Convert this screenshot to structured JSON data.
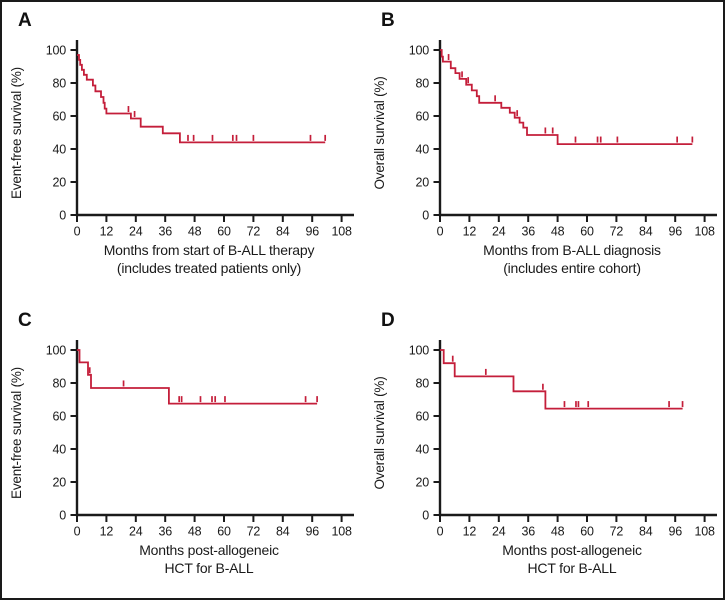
{
  "figure": {
    "background": "#ffffff",
    "border_color": "#1a1a1a",
    "curve_color": "#c41e3a",
    "axis_color": "#1a1a1a"
  },
  "chart_data": [
    {
      "type": "line",
      "subtype": "kaplan-meier-step",
      "panel_label": "A",
      "ylabel": "Event-free survival (%)",
      "xlabel_lines": [
        "Months from start of B-ALL therapy",
        "(includes treated patients only)"
      ],
      "xticks": [
        0,
        12,
        24,
        36,
        48,
        60,
        72,
        84,
        96,
        108
      ],
      "yticks": [
        0,
        20,
        40,
        60,
        80,
        100
      ],
      "xlim": [
        0,
        113
      ],
      "ylim": [
        0,
        100
      ],
      "line_color": "#c41e3a",
      "steps": [
        [
          0,
          97
        ],
        [
          0.8,
          94
        ],
        [
          1.3,
          91
        ],
        [
          2,
          88
        ],
        [
          2.8,
          85
        ],
        [
          4,
          82
        ],
        [
          6.5,
          78.5
        ],
        [
          7.5,
          75
        ],
        [
          9.8,
          71.5
        ],
        [
          10.8,
          68
        ],
        [
          11.3,
          64.5
        ],
        [
          12,
          61.5
        ],
        [
          22,
          58.5
        ],
        [
          26,
          53.5
        ],
        [
          35,
          49.5
        ],
        [
          42,
          44
        ]
      ],
      "x_end": 101.3,
      "censors": [
        [
          21,
          61.5
        ],
        [
          23.5,
          58.5
        ],
        [
          45.3,
          44
        ],
        [
          47.6,
          44
        ],
        [
          55.3,
          44
        ],
        [
          63.6,
          44
        ],
        [
          65.1,
          44
        ],
        [
          72,
          44
        ],
        [
          95.3,
          44
        ],
        [
          101.3,
          44
        ]
      ]
    },
    {
      "type": "line",
      "subtype": "kaplan-meier-step",
      "panel_label": "B",
      "ylabel": "Overall survival (%)",
      "xlabel_lines": [
        "Months from B-ALL diagnosis",
        "(includes entire cohort)"
      ],
      "xticks": [
        0,
        12,
        24,
        36,
        48,
        60,
        72,
        84,
        96,
        108
      ],
      "yticks": [
        0,
        20,
        40,
        60,
        80,
        100
      ],
      "xlim": [
        0,
        113
      ],
      "ylim": [
        0,
        100
      ],
      "line_color": "#c41e3a",
      "steps": [
        [
          0,
          100
        ],
        [
          0.7,
          96
        ],
        [
          1.2,
          93
        ],
        [
          4.4,
          89
        ],
        [
          6.3,
          86
        ],
        [
          8,
          82.5
        ],
        [
          10.7,
          79
        ],
        [
          13,
          75.5
        ],
        [
          15,
          72
        ],
        [
          16,
          68
        ],
        [
          25,
          65
        ],
        [
          28.5,
          62
        ],
        [
          30.5,
          59
        ],
        [
          32.5,
          56
        ],
        [
          34,
          53
        ],
        [
          35.5,
          48.5
        ],
        [
          48,
          43
        ]
      ],
      "x_end": 103,
      "censors": [
        [
          3.5,
          93
        ],
        [
          9,
          82.5
        ],
        [
          11.5,
          79
        ],
        [
          22.5,
          68
        ],
        [
          31.5,
          59
        ],
        [
          43,
          48.5
        ],
        [
          46,
          48.5
        ],
        [
          55.3,
          43
        ],
        [
          64.3,
          43
        ],
        [
          65.6,
          43
        ],
        [
          72.4,
          43
        ],
        [
          96.8,
          43
        ],
        [
          103,
          43
        ]
      ]
    },
    {
      "type": "line",
      "subtype": "kaplan-meier-step",
      "panel_label": "C",
      "ylabel": "Event-free survival (%)",
      "xlabel_lines": [
        "Months post-allogeneic",
        "HCT for B-ALL"
      ],
      "xticks": [
        0,
        12,
        24,
        36,
        48,
        60,
        72,
        84,
        96,
        108
      ],
      "yticks": [
        0,
        20,
        40,
        60,
        80,
        100
      ],
      "xlim": [
        0,
        113
      ],
      "ylim": [
        0,
        100
      ],
      "line_color": "#c41e3a",
      "steps": [
        [
          0,
          100
        ],
        [
          1,
          92.5
        ],
        [
          4.5,
          85
        ],
        [
          5.7,
          77
        ],
        [
          37.5,
          67.5
        ]
      ],
      "x_end": 98,
      "censors": [
        [
          5.2,
          85
        ],
        [
          19,
          77
        ],
        [
          41.7,
          67.5
        ],
        [
          42.7,
          67.5
        ],
        [
          50.4,
          67.5
        ],
        [
          55.1,
          67.5
        ],
        [
          56.4,
          67.5
        ],
        [
          60.4,
          67.5
        ],
        [
          93.3,
          67.5
        ],
        [
          98,
          67.5
        ]
      ]
    },
    {
      "type": "line",
      "subtype": "kaplan-meier-step",
      "panel_label": "D",
      "ylabel": "Overall survival (%)",
      "xlabel_lines": [
        "Months post-allogeneic",
        "HCT for B-ALL"
      ],
      "xticks": [
        0,
        12,
        24,
        36,
        48,
        60,
        72,
        84,
        96,
        108
      ],
      "yticks": [
        0,
        20,
        40,
        60,
        80,
        100
      ],
      "xlim": [
        0,
        113
      ],
      "ylim": [
        0,
        100
      ],
      "line_color": "#c41e3a",
      "steps": [
        [
          0,
          100
        ],
        [
          1.5,
          92
        ],
        [
          6,
          84
        ],
        [
          30,
          75
        ],
        [
          43,
          64.5
        ]
      ],
      "x_end": 99,
      "censors": [
        [
          5.2,
          92
        ],
        [
          18.7,
          84
        ],
        [
          42,
          75
        ],
        [
          50.8,
          64.5
        ],
        [
          55.5,
          64.5
        ],
        [
          56.5,
          64.5
        ],
        [
          60.5,
          64.5
        ],
        [
          93.5,
          64.5
        ],
        [
          99,
          64.5
        ]
      ]
    }
  ]
}
